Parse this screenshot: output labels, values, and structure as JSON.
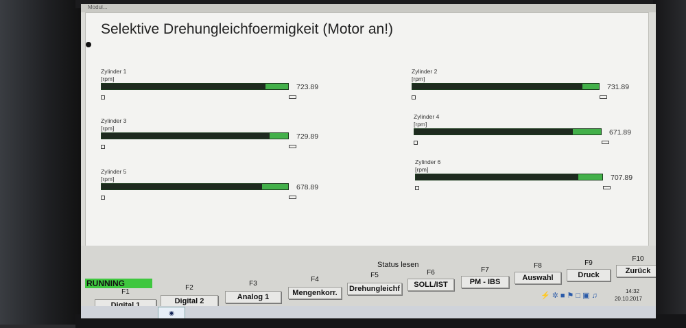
{
  "window": {
    "title": "Modul..."
  },
  "page": {
    "title": "Selektive Drehungleichfoermigkeit (Motor an!)"
  },
  "cylinders": [
    {
      "name": "Zylinder 1",
      "unit": "[rpm]",
      "value": "723.89",
      "level": 0.88
    },
    {
      "name": "Zylinder 2",
      "unit": "[rpm]",
      "value": "731.89",
      "level": 0.91
    },
    {
      "name": "Zylinder 3",
      "unit": "[rpm]",
      "value": "729.89",
      "level": 0.9
    },
    {
      "name": "Zylinder 4",
      "unit": "[rpm]",
      "value": "671.89",
      "level": 0.85
    },
    {
      "name": "Zylinder 5",
      "unit": "[rpm]",
      "value": "678.89",
      "level": 0.86
    },
    {
      "name": "Zylinder 6",
      "unit": "[rpm]",
      "value": "707.89",
      "level": 0.87
    }
  ],
  "status": {
    "running": "RUNNING",
    "status_lesen": "Status lesen"
  },
  "function_keys": [
    {
      "key": "F1",
      "label": "Digital 1"
    },
    {
      "key": "F2",
      "label": "Digital 2"
    },
    {
      "key": "F3",
      "label": "Analog 1"
    },
    {
      "key": "F4",
      "label": "Mengenkorr."
    },
    {
      "key": "F5",
      "label": "Drehungleichf"
    },
    {
      "key": "F6",
      "label": "SOLL/IST"
    },
    {
      "key": "F7",
      "label": "PM - IBS"
    },
    {
      "key": "F8",
      "label": "Auswahl"
    },
    {
      "key": "F9",
      "label": "Druck"
    },
    {
      "key": "F10",
      "label": "Zurück"
    }
  ],
  "tray": {
    "time": "14:32",
    "date": "20.10.2017"
  },
  "colors": {
    "bar_fill": "#1e2a1f",
    "bar_track": "#43b04a",
    "running": "#3fc73f"
  }
}
